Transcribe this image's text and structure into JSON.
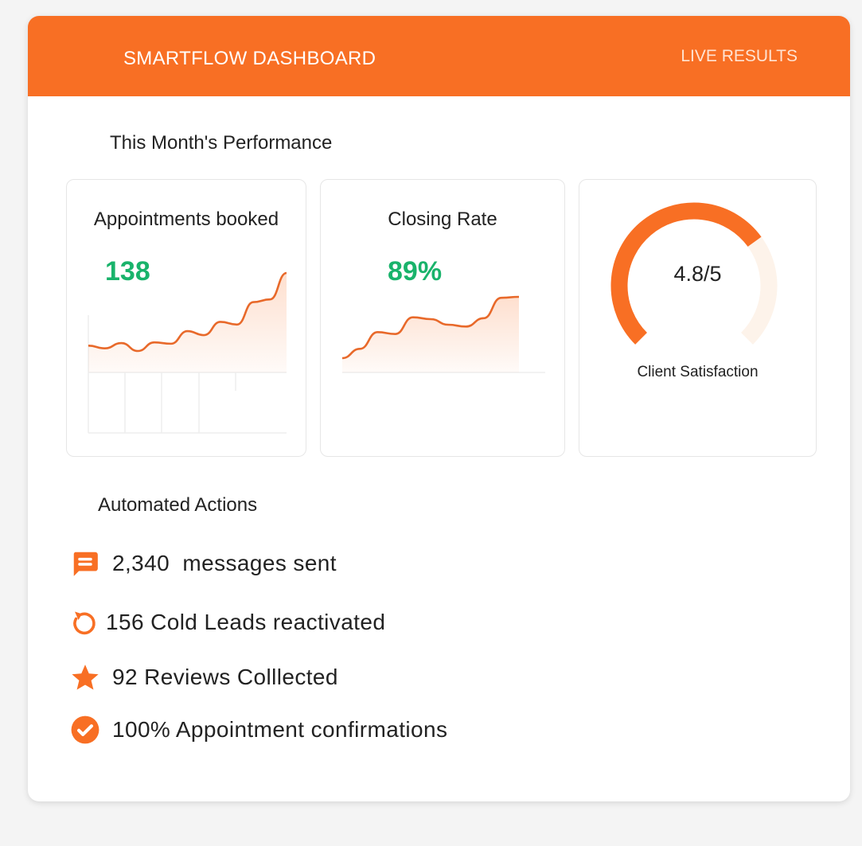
{
  "header": {
    "title": "SMARTFLOW DASHBOARD",
    "status": "LIVE RESULTS"
  },
  "performance": {
    "title": "This Month's Performance",
    "appointments": {
      "label": "Appointments booked",
      "value": "138",
      "trend": [
        3,
        2.6,
        3.4,
        2.2,
        3.5,
        3.3,
        5.2,
        4.6,
        6.6,
        6.2,
        9.6,
        10,
        14
      ]
    },
    "closing": {
      "label": "Closing Rate",
      "value": "89%",
      "trend": [
        1,
        2,
        3.8,
        3.6,
        5.4,
        5.2,
        4.6,
        4.4,
        5.3,
        7.5,
        7.6
      ]
    },
    "satisfaction": {
      "label": "Client Satisfaction",
      "value": "4.8/5",
      "score": 4.8,
      "max": 5
    }
  },
  "actions": {
    "title": "Automated Actions",
    "items": [
      {
        "icon": "message-icon",
        "text": "2,340  messages sent"
      },
      {
        "icon": "refresh-icon",
        "text": "156 Cold Leads reactivated"
      },
      {
        "icon": "star-icon",
        "text": "92 Reviews Colllected"
      },
      {
        "icon": "check-circle-icon",
        "text": "100% Appointment confirmations"
      }
    ]
  },
  "colors": {
    "accent": "#f86f24",
    "positive": "#19b36b"
  }
}
